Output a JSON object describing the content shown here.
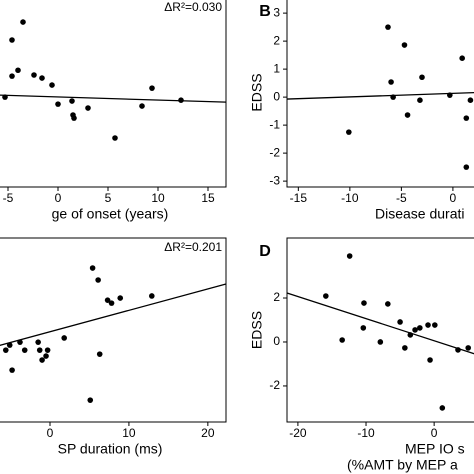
{
  "chart_data": [
    {
      "type": "scatter",
      "annotation": "ΔR²=0.030",
      "x_label": [
        "ge of onset (years)"
      ],
      "x": [
        -5.3,
        -4.6,
        -3.5,
        -4.0,
        -4.6,
        -2.4,
        -1.6,
        -0.6,
        0,
        1.4,
        1.5,
        1.6,
        3.0,
        5.7,
        8.4,
        9.4,
        12.3
      ],
      "y": [
        0,
        2.04,
        2.68,
        0.96,
        0.75,
        0.79,
        0.68,
        0.43,
        -0.25,
        -0.14,
        -0.64,
        -0.75,
        -0.39,
        -1.46,
        -0.32,
        0.32,
        -0.11
      ],
      "trend": {
        "x": [
          -5.8,
          16.8
        ],
        "y": [
          0.07,
          -0.18
        ]
      },
      "xlim": [
        -6.8,
        16.8
      ],
      "ylim": [
        -3.21,
        3.54
      ],
      "xticks": [
        -5,
        0,
        5,
        10,
        15
      ],
      "yticks": [],
      "color": "#000000"
    },
    {
      "type": "scatter",
      "panel_label": "B",
      "y_label": "EDSS",
      "x_label": [
        "Disease durati"
      ],
      "x": [
        -10.1,
        -6.3,
        -6.0,
        -5.8,
        -4.7,
        -4.4,
        -3.2,
        -3.0,
        -0.3,
        0.9,
        1.3,
        1.3,
        1.7
      ],
      "y": [
        -1.25,
        2.5,
        0.54,
        0,
        1.86,
        -0.64,
        -0.11,
        0.71,
        0.07,
        1.39,
        -0.75,
        -2.5,
        -0.11
      ],
      "trend": {
        "x": [
          -16.1,
          3.6
        ],
        "y": [
          -0.07,
          0.18
        ]
      },
      "xlim": [
        -16.1,
        3.6
      ],
      "ylim": [
        -3.21,
        3.54
      ],
      "xticks": [
        -15,
        -10,
        -5,
        0
      ],
      "yticks": [
        -3,
        -2,
        -1,
        0,
        1,
        2,
        3
      ],
      "color": "#000000"
    },
    {
      "type": "scatter",
      "annotation": "ΔR²=0.201",
      "x_label": [
        "SP duration (ms)"
      ],
      "x": [
        -5.6,
        -5.1,
        -4.8,
        -3.8,
        -3.2,
        -1.5,
        -1.3,
        -1.0,
        -0.5,
        -0.3,
        1.8,
        5.1,
        5.4,
        6.1,
        6.3,
        7.3,
        7.8,
        8.9,
        12.9
      ],
      "y": [
        -0.48,
        -0.24,
        -1.43,
        -0.1,
        -0.48,
        -0.1,
        -0.48,
        -0.95,
        -0.76,
        -0.48,
        0.1,
        -2.86,
        3.43,
        2.86,
        -0.67,
        1.9,
        1.76,
        2.0,
        2.1
      ],
      "trend": {
        "x": [
          -7.6,
          22.3
        ],
        "y": [
          -0.38,
          2.67
        ]
      },
      "xlim": [
        -7.6,
        22.3
      ],
      "ylim": [
        -3.9,
        4.86
      ],
      "xticks": [
        0,
        10,
        20
      ],
      "yticks": [],
      "color": "#000000"
    },
    {
      "type": "scatter",
      "panel_label": "D",
      "y_label": "EDSS",
      "x_label": [
        "MEP IO s",
        "(%AMT by MEP a"
      ],
      "x": [
        -15.9,
        -12.4,
        -13.5,
        -10.3,
        -10.4,
        -7.9,
        -6.8,
        -5.0,
        -4.3,
        -3.5,
        -2.8,
        -2.1,
        -0.9,
        -0.6,
        0.1,
        1.2,
        3.5,
        5.0
      ],
      "y": [
        2.09,
        3.91,
        0.09,
        1.77,
        0.64,
        0,
        1.73,
        0.91,
        -0.27,
        0.32,
        0.55,
        0.64,
        0.77,
        -0.82,
        0.77,
        -3.0,
        -0.36,
        -0.27
      ],
      "trend": {
        "x": [
          -21.6,
          8.2
        ],
        "y": [
          2.23,
          -0.77
        ]
      },
      "xlim": [
        -21.6,
        8.2
      ],
      "ylim": [
        -3.64,
        4.73
      ],
      "xticks": [
        -20,
        -10,
        0
      ],
      "yticks": [
        -2,
        0,
        2
      ],
      "color": "#000000"
    }
  ]
}
